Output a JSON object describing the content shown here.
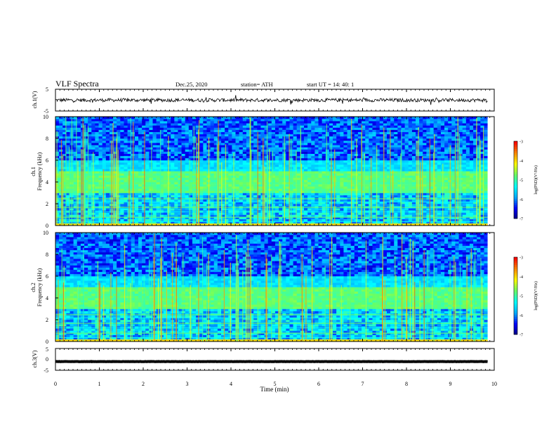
{
  "header": {
    "title": "VLF Spectra",
    "date": "Dec.25, 2020",
    "station": "station= ATH",
    "start": "start  UT =   14: 40: 1"
  },
  "colors": {
    "axis": "#000000",
    "trace": "#000000",
    "colormap": [
      "#00007a",
      "#0000ff",
      "#00aaff",
      "#00ffff",
      "#66ff66",
      "#ffff00",
      "#ff8800",
      "#ff0000",
      "#ffffff"
    ]
  },
  "chart_data": [
    {
      "type": "line",
      "id": "ch1-waveform",
      "ylabel": "ch.1(V)",
      "ylim": [
        -5,
        5
      ],
      "yticks": [
        "5",
        "-5"
      ],
      "xlim": [
        0,
        10
      ],
      "trace_level": 0,
      "trace_noise": 0.8
    },
    {
      "type": "heatmap",
      "id": "ch1-spectrogram",
      "ylabel": "ch.1\nFrequency (kHz)",
      "ylim": [
        0,
        10
      ],
      "yticks": [
        "0",
        "2",
        "4",
        "6",
        "8",
        "10"
      ],
      "xlim": [
        0,
        9.85
      ],
      "colorbar": {
        "label": "log(PSD)(V²/Hz)",
        "ticks": [
          "-3",
          "-4",
          "-5",
          "-6",
          "-7"
        ],
        "range": [
          -7,
          -3
        ]
      }
    },
    {
      "type": "heatmap",
      "id": "ch2-spectrogram",
      "ylabel": "ch.2\nFrequency (kHz)",
      "ylim": [
        0,
        10
      ],
      "yticks": [
        "0",
        "2",
        "4",
        "6",
        "8",
        "10"
      ],
      "xlim": [
        0,
        9.85
      ],
      "colorbar": {
        "label": "log(PSD)(V²/Hz)",
        "ticks": [
          "-3",
          "-4",
          "-5",
          "-6",
          "-7"
        ],
        "range": [
          -7,
          -3
        ]
      }
    },
    {
      "type": "line",
      "id": "ch3-waveform",
      "ylabel": "ch.3(V)",
      "ylim": [
        -5,
        5
      ],
      "yticks": [
        "5",
        "0",
        "-5"
      ],
      "xlim": [
        0,
        10
      ],
      "trace_level": -1,
      "trace_noise": 0.05
    }
  ],
  "xaxis": {
    "label": "Time (min)",
    "ticks": [
      "0",
      "1",
      "2",
      "3",
      "4",
      "5",
      "6",
      "7",
      "8",
      "9",
      "10"
    ],
    "range": [
      0,
      10
    ]
  }
}
